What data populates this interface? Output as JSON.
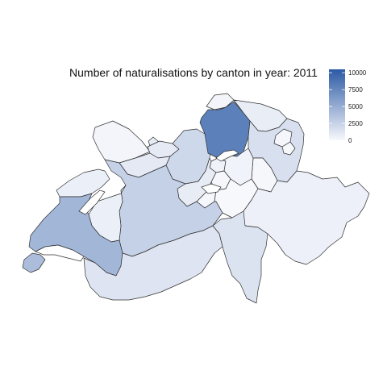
{
  "title": "Number of naturalisations by canton in year: 2011",
  "legend": {
    "min": 0,
    "max": 10500,
    "color_low": "#f7f8fc",
    "color_high": "#2c5aa5",
    "ticks": [
      {
        "value": 0,
        "label": "0"
      },
      {
        "value": 2500,
        "label": "2500"
      },
      {
        "value": 5000,
        "label": "5000"
      },
      {
        "value": 7500,
        "label": "7500"
      },
      {
        "value": 10000,
        "label": "10000"
      }
    ]
  },
  "regions": [
    {
      "id": "zh",
      "value": 8000
    },
    {
      "id": "vd",
      "value": 4400
    },
    {
      "id": "ge",
      "value": 3900
    },
    {
      "id": "be",
      "value": 2600
    },
    {
      "id": "ag",
      "value": 2100
    },
    {
      "id": "vs",
      "value": 1300
    },
    {
      "id": "ti",
      "value": 1400
    },
    {
      "id": "sg",
      "value": 1600
    },
    {
      "id": "so",
      "value": 1000
    },
    {
      "id": "bl",
      "value": 900
    },
    {
      "id": "lu",
      "value": 800
    },
    {
      "id": "fr",
      "value": 600
    },
    {
      "id": "tg",
      "value": 700
    },
    {
      "id": "ne",
      "value": 600
    },
    {
      "id": "gr",
      "value": 500
    },
    {
      "id": "ju",
      "value": 200
    },
    {
      "id": "bs",
      "value": 900
    },
    {
      "id": "sh",
      "value": 200
    },
    {
      "id": "zg",
      "value": 400
    },
    {
      "id": "sz",
      "value": 300
    },
    {
      "id": "ar",
      "value": 100
    },
    {
      "id": "ai",
      "value": 30
    },
    {
      "id": "gl",
      "value": 80
    },
    {
      "id": "ur",
      "value": 20
    },
    {
      "id": "ow",
      "value": 40
    },
    {
      "id": "nw",
      "value": 60
    }
  ]
}
